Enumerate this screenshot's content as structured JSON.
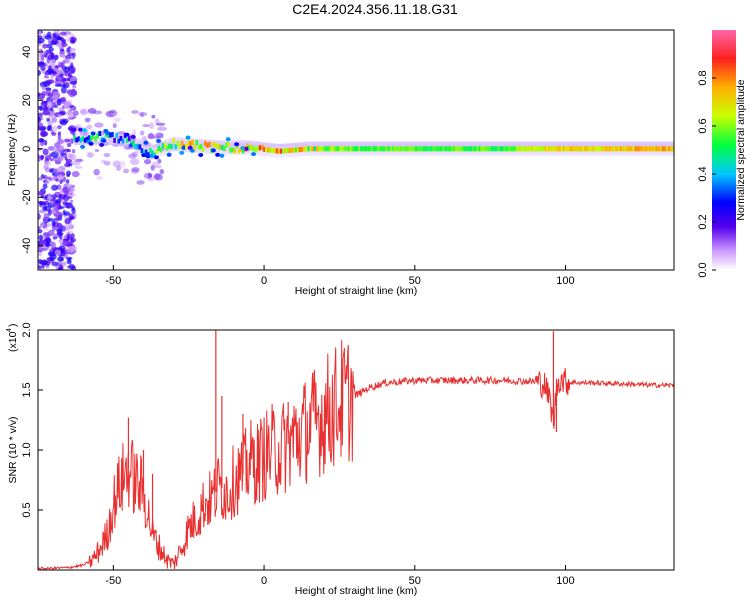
{
  "title": "C2E4.2024.356.11.18.G31",
  "top_panel": {
    "xlabel": "Height of straight line (km)",
    "ylabel": "Frequency (Hz)",
    "xticks": [
      "-50",
      "0",
      "50",
      "100"
    ],
    "yticks": [
      "-40",
      "-20",
      "0",
      "20",
      "40"
    ],
    "colorbar_label": "Normalized spectral amplitude",
    "colorbar_ticks": [
      "0.0",
      "0.2",
      "0.4",
      "0.6",
      "0.8"
    ]
  },
  "bottom_panel": {
    "xlabel": "Height of straight line (km)",
    "ylabel": "SNR (10 * v/v)",
    "scale_label": "(x10",
    "scale_exp": "4",
    "scale_close": ")",
    "xticks": [
      "-50",
      "0",
      "50",
      "100"
    ],
    "yticks": [
      "0.5",
      "1.0",
      "1.5",
      "2.0"
    ]
  },
  "chart_data": [
    {
      "type": "heatmap",
      "title": "C2E4.2024.356.11.18.G31",
      "xlabel": "Height of straight line (km)",
      "ylabel": "Frequency (Hz)",
      "xlim": [
        -75,
        136
      ],
      "ylim": [
        -50,
        49
      ],
      "colorscale": "rainbow",
      "colorbar_label": "Normalized spectral amplitude",
      "colorbar_range": [
        0,
        1
      ],
      "ridge": [
        {
          "x": -63,
          "y": 4.5,
          "v": 0.35
        },
        {
          "x": -55,
          "y": 5,
          "v": 0.4
        },
        {
          "x": -45,
          "y": 4,
          "v": 0.35
        },
        {
          "x": -38,
          "y": -2,
          "v": 0.45
        },
        {
          "x": -30,
          "y": 2,
          "v": 0.55
        },
        {
          "x": -25,
          "y": 1.5,
          "v": 0.7
        },
        {
          "x": -15,
          "y": 0.5,
          "v": 0.6
        },
        {
          "x": -5,
          "y": 0.5,
          "v": 0.7
        },
        {
          "x": 5,
          "y": -1,
          "v": 0.75
        },
        {
          "x": 15,
          "y": 0,
          "v": 0.6
        },
        {
          "x": 40,
          "y": 0,
          "v": 0.55
        },
        {
          "x": 80,
          "y": 0,
          "v": 0.55
        },
        {
          "x": 96,
          "y": 0,
          "v": 0.7
        },
        {
          "x": 110,
          "y": 0,
          "v": 0.7
        },
        {
          "x": 130,
          "y": 0,
          "v": 0.75
        }
      ]
    },
    {
      "type": "line",
      "xlabel": "Height of straight line (km)",
      "ylabel": "SNR (10 * v/v)",
      "y_multiplier": 10000,
      "xlim": [
        -75,
        136
      ],
      "ylim": [
        0,
        2.0
      ],
      "series": [
        {
          "color": "#e83030",
          "x": [
            -75,
            -65,
            -60,
            -57,
            -55,
            -52,
            -50,
            -48,
            -45,
            -43,
            -40,
            -37,
            -35,
            -32,
            -30,
            -27,
            -25,
            -22,
            -20,
            -17,
            -15,
            -12,
            -10,
            -7,
            -5,
            -2,
            0,
            3,
            5,
            8,
            10,
            13,
            15,
            18,
            20,
            23,
            25,
            30,
            35,
            40,
            45,
            50,
            60,
            70,
            80,
            90,
            93,
            95,
            96,
            97,
            98,
            100,
            105,
            110,
            120,
            130,
            136
          ],
          "y": [
            0.01,
            0.02,
            0.04,
            0.08,
            0.15,
            0.3,
            0.55,
            0.7,
            0.85,
            0.75,
            0.65,
            0.3,
            0.2,
            0.08,
            0.05,
            0.2,
            0.35,
            0.45,
            0.55,
            0.6,
            0.7,
            0.65,
            0.75,
            0.8,
            0.9,
            0.9,
            0.95,
            1.0,
            1.0,
            1.05,
            1.1,
            1.15,
            1.2,
            1.25,
            1.3,
            1.35,
            1.4,
            1.45,
            1.52,
            1.56,
            1.57,
            1.58,
            1.58,
            1.58,
            1.58,
            1.57,
            1.55,
            1.4,
            1.2,
            1.5,
            1.6,
            1.57,
            1.56,
            1.56,
            1.55,
            1.54,
            1.54
          ],
          "spikes": [
            {
              "x": -45,
              "y": 1.27
            },
            {
              "x": -40,
              "y": 1.0
            },
            {
              "x": -37,
              "y": 0.8
            },
            {
              "x": -16,
              "y": 2.0
            },
            {
              "x": -14,
              "y": 1.45
            },
            {
              "x": -7,
              "y": 1.3
            },
            {
              "x": 8,
              "y": 1.4
            },
            {
              "x": 96,
              "y": 1.99
            },
            {
              "x": 97,
              "y": 1.15
            }
          ]
        }
      ]
    }
  ]
}
